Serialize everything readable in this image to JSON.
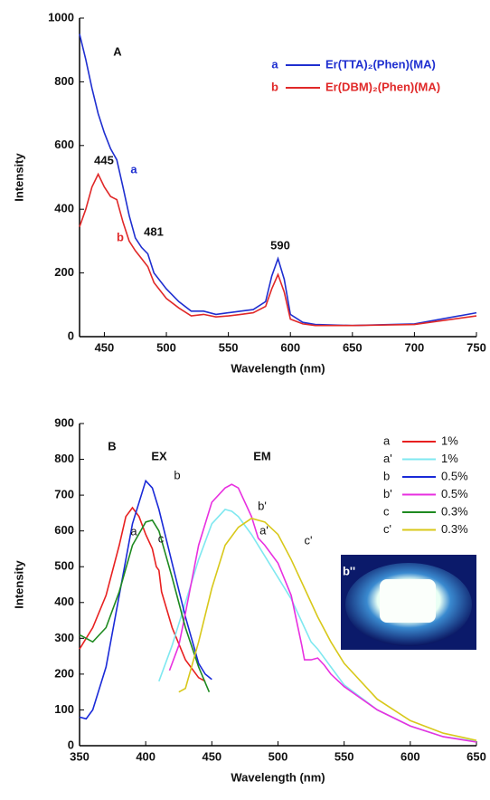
{
  "chart_data": [
    {
      "type": "line",
      "panel_label": "A",
      "xlabel": "Wavelength (nm)",
      "ylabel": "Intensity",
      "xlim": [
        430,
        750
      ],
      "xticks": [
        450,
        500,
        550,
        600,
        650,
        700,
        750
      ],
      "ylim": [
        0,
        1000
      ],
      "yticks": [
        0,
        200,
        400,
        600,
        800,
        1000
      ],
      "x": [
        430,
        435,
        440,
        445,
        450,
        455,
        460,
        465,
        470,
        475,
        480,
        485,
        490,
        500,
        510,
        520,
        530,
        540,
        550,
        560,
        570,
        580,
        585,
        590,
        595,
        600,
        610,
        620,
        650,
        700,
        750
      ],
      "series": [
        {
          "name": "Er(TTA)₂(Phen)(MA)",
          "legend_key": "a",
          "color": "#1f2fd0",
          "values": [
            950,
            870,
            780,
            700,
            640,
            590,
            555,
            470,
            380,
            310,
            280,
            260,
            200,
            150,
            110,
            80,
            80,
            70,
            75,
            80,
            85,
            110,
            190,
            245,
            180,
            70,
            45,
            38,
            35,
            40,
            75
          ]
        },
        {
          "name": "Er(DBM)₂(Phen)(MA)",
          "legend_key": "b",
          "color": "#e02828",
          "values": [
            345,
            400,
            470,
            510,
            470,
            440,
            430,
            360,
            300,
            270,
            245,
            220,
            170,
            120,
            90,
            65,
            70,
            62,
            65,
            70,
            75,
            95,
            150,
            195,
            140,
            55,
            40,
            35,
            35,
            38,
            65
          ]
        }
      ],
      "annotations": [
        "445",
        "481",
        "590",
        "a",
        "b"
      ]
    },
    {
      "type": "line",
      "panel_label": "B",
      "xlabel": "Wavelength (nm)",
      "ylabel": "Intensity",
      "xlim": [
        350,
        650
      ],
      "xticks": [
        350,
        400,
        450,
        500,
        550,
        600,
        650
      ],
      "ylim": [
        0,
        900
      ],
      "yticks": [
        0,
        100,
        200,
        300,
        400,
        500,
        600,
        700,
        800,
        900
      ],
      "series": [
        {
          "name": "1%",
          "legend_key": "a",
          "color": "#e82020",
          "x": [
            350,
            360,
            370,
            380,
            385,
            390,
            395,
            400,
            405,
            408,
            410,
            412,
            420,
            430,
            440,
            445
          ],
          "values": [
            270,
            330,
            420,
            560,
            640,
            665,
            640,
            590,
            550,
            500,
            490,
            430,
            330,
            240,
            190,
            180
          ]
        },
        {
          "name": "1%",
          "legend_key": "a'",
          "color": "#7fe8f0",
          "x": [
            410,
            420,
            430,
            440,
            450,
            460,
            465,
            470,
            480,
            490,
            500,
            510,
            520,
            525,
            530,
            540,
            550,
            575,
            600,
            625,
            650
          ],
          "values": [
            180,
            280,
            400,
            520,
            620,
            660,
            655,
            640,
            590,
            530,
            470,
            410,
            330,
            290,
            270,
            220,
            170,
            100,
            55,
            25,
            12
          ]
        },
        {
          "name": "0.5%",
          "legend_key": "b",
          "color": "#1a2ad8",
          "x": [
            350,
            355,
            360,
            370,
            380,
            390,
            400,
            405,
            410,
            420,
            430,
            440,
            445,
            450
          ],
          "values": [
            80,
            75,
            100,
            220,
            420,
            620,
            740,
            720,
            660,
            510,
            360,
            230,
            200,
            185
          ]
        },
        {
          "name": "0.5%",
          "legend_key": "b'",
          "color": "#e830e0",
          "x": [
            418,
            425,
            430,
            440,
            450,
            460,
            465,
            470,
            480,
            485,
            490,
            500,
            510,
            518,
            520,
            525,
            530,
            535,
            540,
            550,
            575,
            600,
            625,
            650
          ],
          "values": [
            210,
            280,
            370,
            560,
            680,
            720,
            730,
            720,
            640,
            580,
            560,
            510,
            420,
            280,
            240,
            240,
            245,
            225,
            200,
            165,
            100,
            55,
            25,
            10
          ]
        },
        {
          "name": "0.3%",
          "legend_key": "c",
          "color": "#1e8a20",
          "x": [
            350,
            360,
            370,
            380,
            390,
            400,
            405,
            410,
            420,
            430,
            440,
            448
          ],
          "values": [
            310,
            290,
            330,
            430,
            560,
            625,
            630,
            600,
            470,
            330,
            220,
            150
          ]
        },
        {
          "name": "0.3%",
          "legend_key": "c'",
          "color": "#d8c81a",
          "x": [
            425,
            430,
            440,
            450,
            460,
            470,
            480,
            490,
            500,
            510,
            520,
            530,
            540,
            550,
            575,
            600,
            625,
            650
          ],
          "values": [
            150,
            160,
            290,
            440,
            560,
            610,
            635,
            625,
            590,
            520,
            440,
            360,
            290,
            230,
            130,
            70,
            35,
            15
          ]
        }
      ],
      "annotations": [
        "EX",
        "EM",
        "a",
        "b",
        "c",
        "a'",
        "b'",
        "c'",
        "b''"
      ]
    }
  ]
}
